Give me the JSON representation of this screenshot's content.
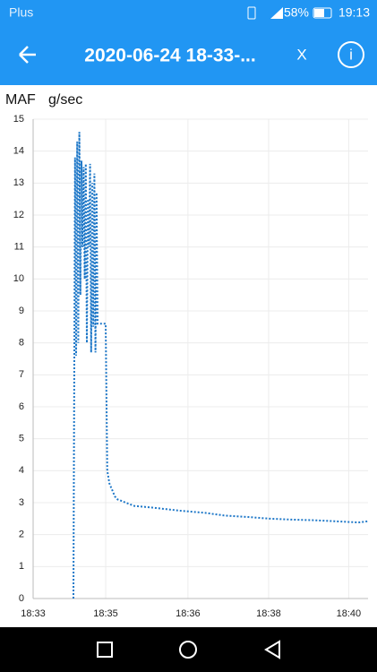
{
  "status_bar": {
    "carrier": "Plus",
    "battery": "58%",
    "time": "19:13"
  },
  "header": {
    "title": "2020-06-24 18-33-...",
    "close": "X",
    "info": "i"
  },
  "chart_data": {
    "type": "line",
    "y_label": "MAF",
    "unit": "g/sec",
    "color": "#1f78c8",
    "grid": true,
    "xlim": [
      0,
      6.23
    ],
    "ylim": [
      0,
      15
    ],
    "yticks": [
      0,
      1,
      2,
      3,
      4,
      5,
      6,
      7,
      8,
      9,
      10,
      11,
      12,
      13,
      14,
      15
    ],
    "xticks": [
      {
        "value": 0,
        "label": "18:33"
      },
      {
        "value": 1.35,
        "label": "18:35"
      },
      {
        "value": 2.88,
        "label": "18:36"
      },
      {
        "value": 4.38,
        "label": "18:38"
      },
      {
        "value": 5.87,
        "label": "18:40"
      }
    ],
    "x": [
      0.75,
      0.78,
      0.8,
      0.82,
      0.84,
      0.86,
      0.88,
      0.9,
      0.92,
      0.94,
      0.96,
      0.98,
      1.0,
      1.02,
      1.04,
      1.06,
      1.08,
      1.1,
      1.12,
      1.14,
      1.16,
      1.18,
      1.2,
      1.22,
      1.25,
      1.3,
      1.35,
      1.38,
      1.42,
      1.47,
      1.52,
      1.57,
      1.65,
      1.72,
      1.88,
      2.2,
      2.72,
      3.2,
      3.55,
      4.0,
      4.38,
      4.8,
      5.22,
      5.6,
      6.05,
      6.15,
      6.23
    ],
    "values": [
      0,
      13.8,
      7.6,
      14.3,
      8.0,
      14.6,
      9.5,
      13.7,
      11.0,
      13.5,
      10.0,
      13.6,
      8.0,
      12.5,
      11.0,
      13.6,
      7.7,
      13.0,
      8.5,
      13.3,
      7.7,
      12.7,
      8.6,
      8.6,
      8.6,
      8.6,
      8.6,
      4.0,
      3.6,
      3.4,
      3.2,
      3.1,
      3.05,
      3.0,
      2.9,
      2.85,
      2.75,
      2.68,
      2.6,
      2.55,
      2.5,
      2.47,
      2.45,
      2.42,
      2.38,
      2.4,
      2.42
    ]
  }
}
